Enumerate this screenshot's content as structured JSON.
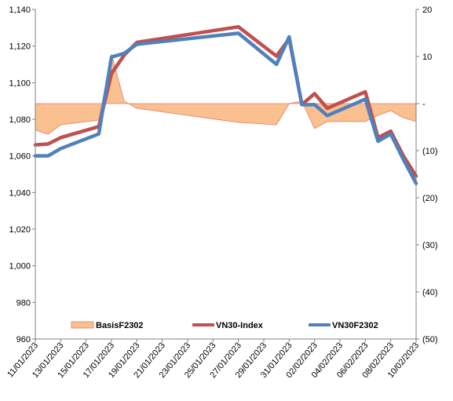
{
  "chart_data": {
    "type": "line",
    "x": [
      "11/01/2023",
      "12/01/2023",
      "13/01/2023",
      "16/01/2023",
      "17/01/2023",
      "18/01/2023",
      "19/01/2023",
      "27/01/2023",
      "30/01/2023",
      "31/01/2023",
      "01/02/2023",
      "02/02/2023",
      "03/02/2023",
      "06/02/2023",
      "07/02/2023",
      "08/02/2023",
      "09/02/2023",
      "10/02/2023"
    ],
    "x_tick_labels": [
      "11/01/2023",
      "13/01/2023",
      "15/01/2023",
      "17/01/2023",
      "19/01/2023",
      "21/01/2023",
      "23/01/2023",
      "25/01/2023",
      "27/01/2023",
      "29/01/2023",
      "31/01/2023",
      "02/02/2023",
      "04/02/2023",
      "06/02/2023",
      "08/02/2023",
      "10/02/2023"
    ],
    "x_range": [
      "11/01/2023",
      "10/02/2023"
    ],
    "y_left": {
      "range": [
        960,
        1140
      ],
      "ticks": [
        960,
        980,
        1000,
        1020,
        1040,
        1060,
        1080,
        1100,
        1120,
        1140
      ],
      "tick_labels": [
        "960",
        "980",
        "1,000",
        "1,020",
        "1,040",
        "1,060",
        "1,080",
        "1,100",
        "1,120",
        "1,140"
      ]
    },
    "y_right": {
      "range": [
        -50,
        20
      ],
      "ticks": [
        20,
        10,
        0,
        -10,
        -20,
        -30,
        -40,
        -50
      ],
      "tick_labels": [
        "20",
        "10",
        "-",
        "(10)",
        "(20)",
        "(30)",
        "(40)",
        "(50)"
      ]
    },
    "series": [
      {
        "name": "BasisF2302",
        "type": "area",
        "axis": "right",
        "color": "#FAC090",
        "edge_color": "#E07B6A",
        "values": [
          -5.6,
          -6.5,
          -4.5,
          -3.5,
          10.5,
          0.5,
          -1.0,
          -4.0,
          -4.5,
          0,
          0.5,
          -5.3,
          -3.8,
          -3.8,
          -2.5,
          -1.5,
          -3.0,
          -3.8
        ]
      },
      {
        "name": "VN30-Index",
        "type": "line",
        "axis": "left",
        "color": "#C0504D",
        "values": [
          1066,
          1066.5,
          1070,
          1076,
          1105,
          1115,
          1122,
          1130.5,
          1114.5,
          1124,
          1088,
          1094,
          1086,
          1095,
          1070,
          1073.5,
          1060,
          1049
        ]
      },
      {
        "name": "VN30F2302",
        "type": "line",
        "axis": "left",
        "color": "#4F81BD",
        "values": [
          1060,
          1060,
          1064,
          1072,
          1114,
          1116,
          1121,
          1127,
          1110,
          1125,
          1088,
          1088,
          1082,
          1091,
          1068,
          1072,
          1058,
          1045
        ]
      }
    ],
    "legend": {
      "position": "bottom-inside",
      "entries": [
        "BasisF2302",
        "VN30-Index",
        "VN30F2302"
      ]
    },
    "grid": false
  }
}
